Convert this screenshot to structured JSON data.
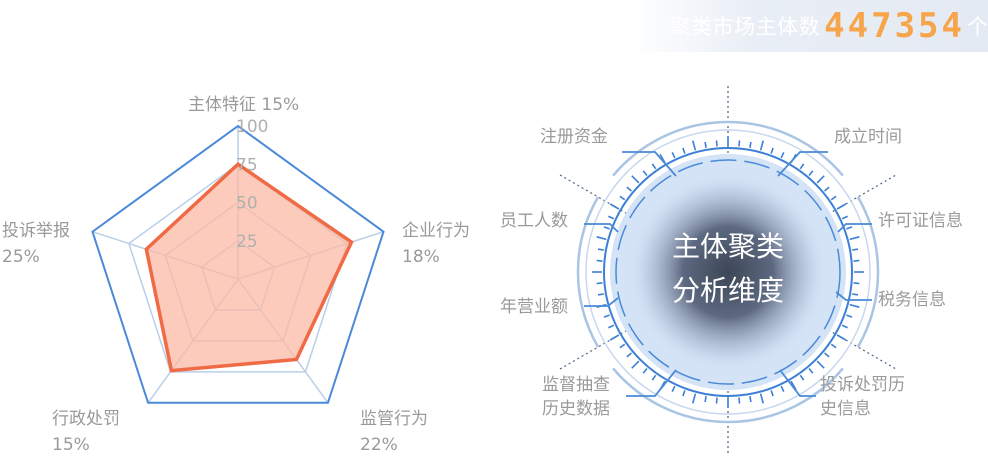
{
  "header": {
    "label": "聚类市场主体数",
    "value": "447354",
    "unit": "个"
  },
  "chart_data": [
    {
      "type": "radar",
      "categories": [
        "主体特征 15%",
        "企业行为 18%",
        "监管行为 22%",
        "行政处罚 15%",
        "投诉举报 25%"
      ],
      "category_lines": [
        [
          "主体特征 15%"
        ],
        [
          "企业行为",
          "18%"
        ],
        [
          "监管行为",
          "22%"
        ],
        [
          "行政处罚",
          "15%"
        ],
        [
          "投诉举报",
          "25%"
        ]
      ],
      "ticks": [
        "25",
        "50",
        "75",
        "100"
      ],
      "rmax": 100,
      "series": [
        {
          "values": [
            75,
            78,
            65,
            74,
            63
          ]
        },
        {
          "values": [
            100,
            100,
            100,
            100,
            100
          ]
        }
      ],
      "colors": {
        "outline": "#4a8ad8",
        "grid": "#b9cfe8",
        "fill": "#fbb9a6",
        "stroke": "#f06a45"
      }
    },
    {
      "type": "diagram",
      "center_title": [
        "主体聚类",
        "分析维度"
      ],
      "dimensions": [
        {
          "label": [
            "注册资金"
          ]
        },
        {
          "label": [
            "成立时间"
          ]
        },
        {
          "label": [
            "员工人数"
          ]
        },
        {
          "label": [
            "许可证信息"
          ]
        },
        {
          "label": [
            "年营业额"
          ]
        },
        {
          "label": [
            "税务信息"
          ]
        },
        {
          "label": [
            "监督抽查",
            "历史数据"
          ]
        },
        {
          "label": [
            "投诉处罚历",
            "史信息"
          ]
        }
      ],
      "colors": {
        "ring": "#4a8ad8",
        "disc": "#d4e3f6",
        "core": "#3c4655"
      }
    }
  ]
}
